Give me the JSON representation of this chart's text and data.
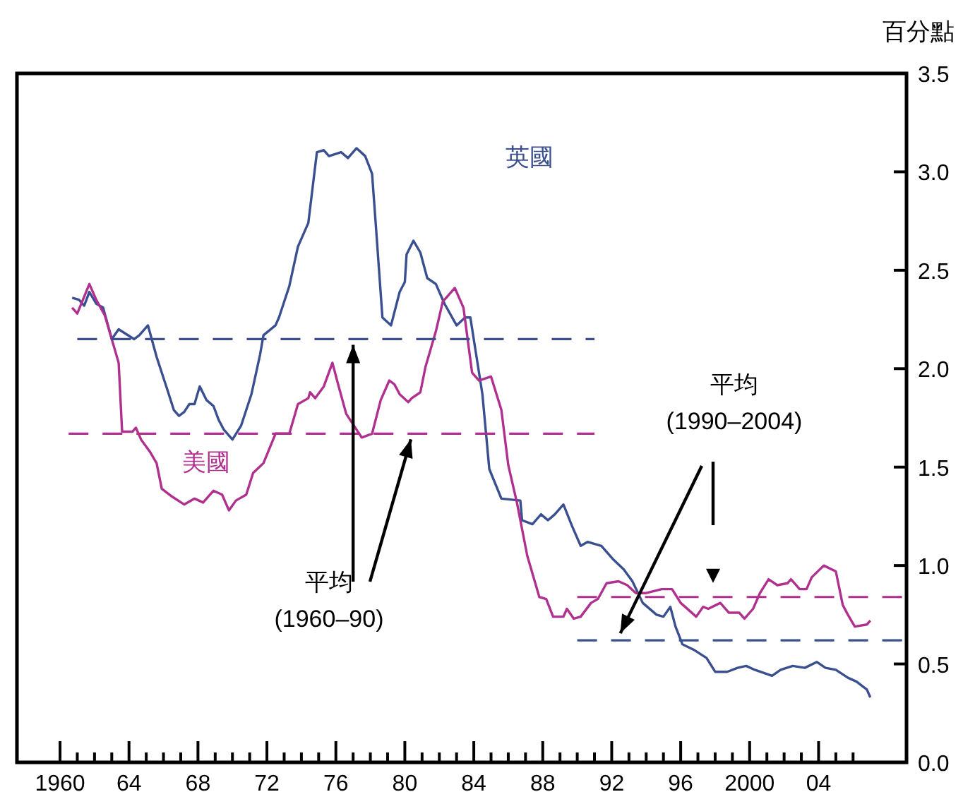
{
  "chart_data": {
    "type": "line",
    "ylabel": "百分點",
    "xlim": [
      1957.5,
      2009.1
    ],
    "ylim": [
      0,
      3.5
    ],
    "xticks": [
      {
        "value": 1960,
        "label": "1960"
      },
      {
        "value": 1961,
        "label": null
      },
      {
        "value": 1962,
        "label": null
      },
      {
        "value": 1963,
        "label": null
      },
      {
        "value": 1964,
        "label": "64"
      },
      {
        "value": 1965,
        "label": null
      },
      {
        "value": 1966,
        "label": null
      },
      {
        "value": 1967,
        "label": null
      },
      {
        "value": 1968,
        "label": "68"
      },
      {
        "value": 1969,
        "label": null
      },
      {
        "value": 1970,
        "label": null
      },
      {
        "value": 1971,
        "label": null
      },
      {
        "value": 1972,
        "label": "72"
      },
      {
        "value": 1973,
        "label": null
      },
      {
        "value": 1974,
        "label": null
      },
      {
        "value": 1975,
        "label": null
      },
      {
        "value": 1976,
        "label": "76"
      },
      {
        "value": 1977,
        "label": null
      },
      {
        "value": 1978,
        "label": null
      },
      {
        "value": 1979,
        "label": null
      },
      {
        "value": 1980,
        "label": "80"
      },
      {
        "value": 1981,
        "label": null
      },
      {
        "value": 1982,
        "label": null
      },
      {
        "value": 1983,
        "label": null
      },
      {
        "value": 1984,
        "label": "84"
      },
      {
        "value": 1985,
        "label": null
      },
      {
        "value": 1986,
        "label": null
      },
      {
        "value": 1987,
        "label": null
      },
      {
        "value": 1988,
        "label": "88"
      },
      {
        "value": 1989,
        "label": null
      },
      {
        "value": 1990,
        "label": null
      },
      {
        "value": 1991,
        "label": null
      },
      {
        "value": 1992,
        "label": "92"
      },
      {
        "value": 1993,
        "label": null
      },
      {
        "value": 1994,
        "label": null
      },
      {
        "value": 1995,
        "label": null
      },
      {
        "value": 1996,
        "label": "96"
      },
      {
        "value": 1997,
        "label": null
      },
      {
        "value": 1998,
        "label": null
      },
      {
        "value": 1999,
        "label": null
      },
      {
        "value": 2000,
        "label": "2000"
      },
      {
        "value": 2001,
        "label": null
      },
      {
        "value": 2002,
        "label": null
      },
      {
        "value": 2003,
        "label": null
      },
      {
        "value": 2004,
        "label": "04"
      },
      {
        "value": 2005,
        "label": null
      },
      {
        "value": 2006,
        "label": null
      }
    ],
    "yticks": [
      {
        "value": 0,
        "label": "0.0"
      },
      0.5,
      {
        "value": 1,
        "label": "1.0"
      },
      1.5,
      {
        "value": 2,
        "label": "2.0"
      },
      2.5,
      {
        "value": 3,
        "label": "3.0"
      },
      3.5
    ],
    "series": [
      {
        "name": "英國",
        "color": "#3a4f8f",
        "type": "line",
        "line_style": "solid",
        "x": [
          1960.7,
          1961.1,
          1961.4,
          1961.7,
          1962.1,
          1962.5,
          1963.0,
          1963.4,
          1964.3,
          1964.6,
          1965.1,
          1965.6,
          1966.2,
          1966.6,
          1966.9,
          1967.2,
          1967.5,
          1967.8,
          1968.1,
          1968.5,
          1968.9,
          1969.2,
          1969.5,
          1970.0,
          1970.5,
          1971.1,
          1971.6,
          1971.8,
          1972.5,
          1972.7,
          1973.3,
          1973.8,
          1974.4,
          1974.9,
          1975.3,
          1975.6,
          1976.3,
          1976.7,
          1977.2,
          1977.7,
          1978.1,
          1978.3,
          1978.7,
          1979.2,
          1979.7,
          1980.0,
          1980.1,
          1980.5,
          1980.9,
          1981.3,
          1981.8,
          1982.3,
          1983.0,
          1983.5,
          1983.8,
          1984.5,
          1984.9,
          1985.6,
          1986.7,
          1986.8,
          1987.4,
          1987.9,
          1988.3,
          1988.7,
          1989.2,
          1989.7,
          1990.2,
          1990.6,
          1991.4,
          1992.1,
          1992.7,
          1993.2,
          1993.8,
          1994.6,
          1995.0,
          1995.4,
          1995.7,
          1996.1,
          1996.8,
          1997.5,
          1998.0,
          1998.7,
          1999.3,
          1999.8,
          2000.3,
          2001.3,
          2001.8,
          2002.5,
          2003.2,
          2003.9,
          2004.4,
          2005.0,
          2005.7,
          2006.2,
          2006.8,
          2007.0
        ],
        "values": [
          2.36,
          2.35,
          2.32,
          2.39,
          2.33,
          2.31,
          2.15,
          2.2,
          2.15,
          2.17,
          2.22,
          2.06,
          1.9,
          1.79,
          1.76,
          1.78,
          1.82,
          1.82,
          1.91,
          1.84,
          1.81,
          1.74,
          1.69,
          1.64,
          1.71,
          1.87,
          2.07,
          2.17,
          2.22,
          2.26,
          2.42,
          2.62,
          2.74,
          3.1,
          3.11,
          3.08,
          3.1,
          3.07,
          3.12,
          3.08,
          2.99,
          2.75,
          2.26,
          2.22,
          2.39,
          2.44,
          2.58,
          2.65,
          2.59,
          2.46,
          2.43,
          2.33,
          2.22,
          2.26,
          2.26,
          1.87,
          1.49,
          1.34,
          1.33,
          1.23,
          1.21,
          1.26,
          1.23,
          1.26,
          1.31,
          1.2,
          1.1,
          1.12,
          1.1,
          1.03,
          0.98,
          0.92,
          0.81,
          0.75,
          0.74,
          0.79,
          0.69,
          0.6,
          0.57,
          0.53,
          0.46,
          0.46,
          0.48,
          0.49,
          0.47,
          0.44,
          0.47,
          0.49,
          0.48,
          0.51,
          0.48,
          0.47,
          0.43,
          0.41,
          0.37,
          0.33
        ]
      },
      {
        "name": "美國",
        "color": "#b0308f",
        "type": "line",
        "line_style": "solid",
        "x": [
          1960.7,
          1961.0,
          1961.7,
          1962.1,
          1962.6,
          1963.4,
          1963.6,
          1964.2,
          1964.4,
          1964.7,
          1965.2,
          1965.6,
          1965.9,
          1966.5,
          1967.2,
          1967.8,
          1968.3,
          1968.9,
          1969.4,
          1969.8,
          1970.2,
          1970.8,
          1971.2,
          1971.8,
          1972.5,
          1973.3,
          1973.8,
          1974.4,
          1974.5,
          1974.8,
          1975.3,
          1975.8,
          1976.1,
          1976.6,
          1977.5,
          1978.1,
          1978.6,
          1979.1,
          1979.4,
          1979.7,
          1980.2,
          1980.4,
          1980.9,
          1981.2,
          1981.8,
          1982.2,
          1982.9,
          1983.4,
          1983.9,
          1984.3,
          1985.0,
          1985.6,
          1986.0,
          1986.5,
          1987.1,
          1987.8,
          1988.2,
          1988.6,
          1989.2,
          1989.4,
          1989.8,
          1990.2,
          1990.8,
          1991.2,
          1991.7,
          1992.4,
          1992.9,
          1993.4,
          1994.0,
          1994.9,
          1995.5,
          1996.0,
          1996.9,
          1997.3,
          1997.6,
          1998.3,
          1998.8,
          1999.4,
          1999.7,
          2000.2,
          2000.6,
          2001.1,
          2001.6,
          2002.2,
          2002.4,
          2002.9,
          2003.3,
          2003.6,
          2004.3,
          2005.0,
          2005.4,
          2005.7,
          2006.1,
          2006.8,
          2007.0
        ],
        "values": [
          2.31,
          2.28,
          2.43,
          2.35,
          2.27,
          2.03,
          1.68,
          1.68,
          1.7,
          1.64,
          1.58,
          1.52,
          1.39,
          1.35,
          1.31,
          1.34,
          1.32,
          1.38,
          1.36,
          1.28,
          1.33,
          1.36,
          1.47,
          1.52,
          1.67,
          1.67,
          1.82,
          1.85,
          1.88,
          1.85,
          1.91,
          2.03,
          1.93,
          1.77,
          1.65,
          1.67,
          1.84,
          1.94,
          1.92,
          1.87,
          1.83,
          1.85,
          1.88,
          2.01,
          2.19,
          2.34,
          2.41,
          2.31,
          1.98,
          1.94,
          1.96,
          1.79,
          1.51,
          1.32,
          1.05,
          0.84,
          0.83,
          0.74,
          0.74,
          0.78,
          0.73,
          0.74,
          0.81,
          0.83,
          0.91,
          0.92,
          0.9,
          0.86,
          0.86,
          0.88,
          0.88,
          0.81,
          0.74,
          0.79,
          0.78,
          0.81,
          0.76,
          0.76,
          0.73,
          0.78,
          0.86,
          0.93,
          0.9,
          0.91,
          0.93,
          0.88,
          0.88,
          0.94,
          1.0,
          0.97,
          0.8,
          0.75,
          0.69,
          0.7,
          0.72
        ]
      },
      {
        "color": "#3a4f8f",
        "type": "line",
        "line_style": "dashed",
        "x": [
          1961,
          1991
        ],
        "values": [
          2.15,
          2.15
        ]
      },
      {
        "color": "#b0308f",
        "type": "line",
        "line_style": "dashed",
        "x": [
          1960.5,
          1991
        ],
        "values": [
          1.67,
          1.67
        ]
      },
      {
        "color": "#3a4f8f",
        "type": "line",
        "line_style": "dashed",
        "x": [
          1990,
          2009
        ],
        "values": [
          0.62,
          0.62
        ]
      },
      {
        "color": "#b0308f",
        "type": "line",
        "line_style": "dashed",
        "x": [
          1990,
          2009
        ],
        "values": [
          0.84,
          0.84
        ]
      }
    ],
    "annotations": [
      {
        "text": "平均\n(1960–90)",
        "x": 1977,
        "y": 2.15
      },
      {
        "text": "平均\n(1990–2004)",
        "x": 1992.5,
        "y": 0.62
      }
    ]
  }
}
